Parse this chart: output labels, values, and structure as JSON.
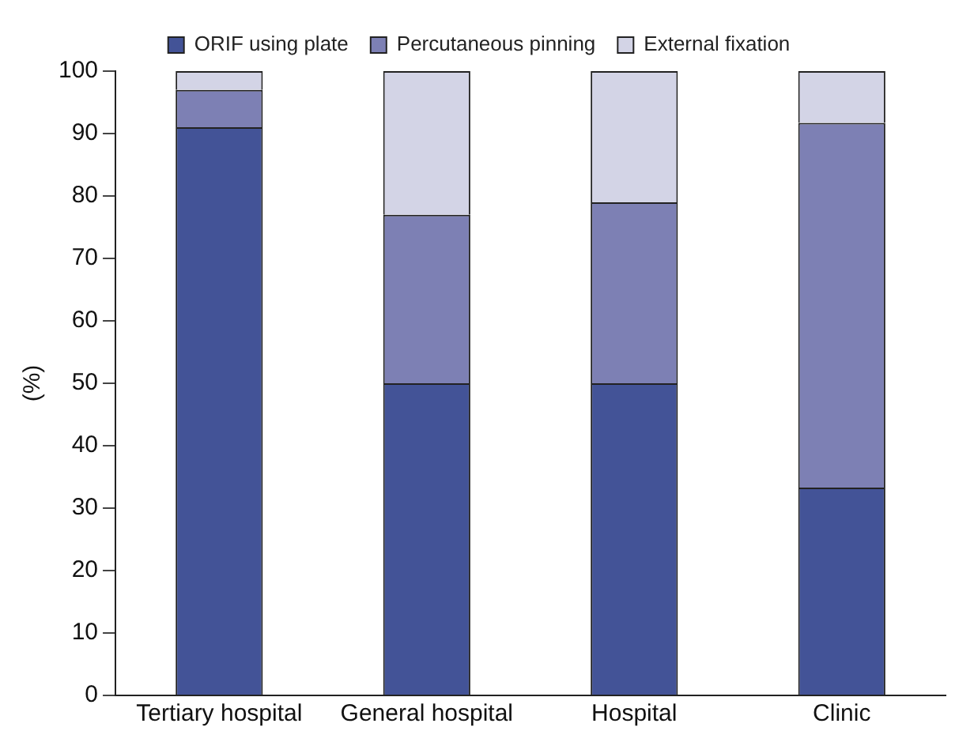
{
  "chart_data": {
    "type": "bar",
    "stacked": true,
    "ylabel": "(%)",
    "categories": [
      "Tertiary hospital",
      "General hospital",
      "Hospital",
      "Clinic"
    ],
    "series": [
      {
        "name": "ORIF using plate",
        "color": "#435397",
        "values": [
          91,
          50,
          50,
          33.3
        ]
      },
      {
        "name": "Percutaneous pinning",
        "color": "#7d80b4",
        "values": [
          6,
          27,
          29,
          58.4
        ]
      },
      {
        "name": "External fixation",
        "color": "#d3d4e6",
        "values": [
          3,
          23,
          21,
          8.3
        ]
      }
    ],
    "ylim": [
      0,
      100
    ],
    "yticks": [
      0,
      10,
      20,
      30,
      40,
      50,
      60,
      70,
      80,
      90,
      100
    ],
    "grid": false,
    "legend": "top"
  }
}
